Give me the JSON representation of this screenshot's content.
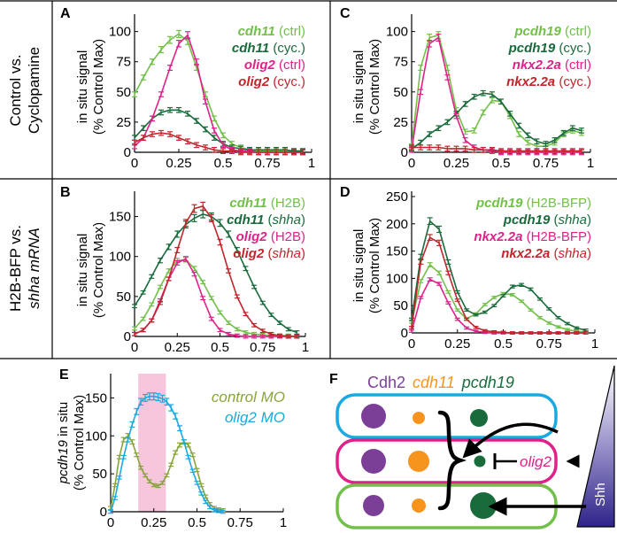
{
  "colors": {
    "light_green": "#72c04a",
    "dark_green": "#1a6b3c",
    "magenta": "#e0218a",
    "dark_red": "#c0262c",
    "blue": "#1ba9e1",
    "olive": "#8aa43c",
    "purple": "#7b3f98",
    "orange": "#f7941d",
    "shade": "#f6c6dd"
  },
  "row_labels": {
    "top": [
      "Control vs.",
      "Cyclopamine"
    ],
    "bottom": [
      "H2B-BFP vs.",
      "shha mRNA"
    ]
  },
  "panels": [
    {
      "letter": "A",
      "ylabel": [
        "in situ signal",
        "(% Control Max)"
      ],
      "yticks": [
        "0",
        "25",
        "50",
        "75",
        "100"
      ],
      "xticks": [
        "0",
        "0.25",
        "0.5",
        "0.75",
        "1"
      ],
      "legend": [
        {
          "gene": "cdh11",
          "cond": "(ctrl)",
          "italic_cond": false,
          "color": "light_green"
        },
        {
          "gene": "cdh11",
          "cond": "(cyc.)",
          "italic_cond": false,
          "color": "dark_green"
        },
        {
          "gene": "olig2",
          "cond": "(ctrl)",
          "italic_cond": false,
          "color": "magenta"
        },
        {
          "gene": "olig2",
          "cond": "(cyc.)",
          "italic_cond": false,
          "color": "dark_red"
        }
      ]
    },
    {
      "letter": "C",
      "ylabel": [
        "in situ signal",
        "(% Control Max)"
      ],
      "yticks": [
        "0",
        "25",
        "50",
        "75",
        "100"
      ],
      "xticks": [
        "0",
        "0.25",
        "0.5",
        "0.75",
        "1"
      ],
      "legend": [
        {
          "gene": "pcdh19",
          "cond": "(ctrl)",
          "italic_cond": false,
          "color": "light_green"
        },
        {
          "gene": "pcdh19",
          "cond": "(cyc.)",
          "italic_cond": false,
          "color": "dark_green"
        },
        {
          "gene": "nkx2.2a",
          "cond": "(ctrl)",
          "italic_cond": false,
          "color": "magenta"
        },
        {
          "gene": "nkx2.2a",
          "cond": "(cyc.)",
          "italic_cond": false,
          "color": "dark_red"
        }
      ]
    },
    {
      "letter": "B",
      "ylabel": [
        "in situ signal",
        "(% Control Max)"
      ],
      "yticks": [
        "0",
        "50",
        "100",
        "150"
      ],
      "xticks": [
        "0",
        "0.25",
        "0.5",
        "0.75",
        "1"
      ],
      "legend": [
        {
          "gene": "cdh11",
          "cond": "(H2B)",
          "italic_cond": false,
          "color": "light_green"
        },
        {
          "gene": "cdh11",
          "cond": "(shha)",
          "italic_cond": true,
          "color": "dark_green"
        },
        {
          "gene": "olig2",
          "cond": "(H2B)",
          "italic_cond": false,
          "color": "magenta"
        },
        {
          "gene": "olig2",
          "cond": "(shha)",
          "italic_cond": true,
          "color": "dark_red"
        }
      ]
    },
    {
      "letter": "D",
      "ylabel": [
        "in situ signal",
        "(% Control Max)"
      ],
      "yticks": [
        "0",
        "50",
        "100",
        "150",
        "200",
        "250"
      ],
      "xticks": [
        "0",
        "0.25",
        "0.5",
        "0.75",
        "1"
      ],
      "legend": [
        {
          "gene": "pcdh19",
          "cond": "(H2B-BFP)",
          "italic_cond": false,
          "color": "light_green"
        },
        {
          "gene": "pcdh19",
          "cond": "(shha)",
          "italic_cond": true,
          "color": "dark_green"
        },
        {
          "gene": "nkx2.2a",
          "cond": "(H2B-BFP)",
          "italic_cond": false,
          "color": "magenta"
        },
        {
          "gene": "nkx2.2a",
          "cond": "(shha)",
          "italic_cond": true,
          "color": "dark_red"
        }
      ]
    },
    {
      "letter": "E",
      "ylabel_gene": "pcdh19",
      "ylabel_rest": " in situ",
      "ylabel2": "(% Control Max)",
      "yticks": [
        "0",
        "50",
        "100",
        "150"
      ],
      "xticks": [
        "0",
        "0.25",
        "0.5",
        "0.75",
        "1"
      ],
      "legend": [
        {
          "label": "control MO",
          "color": "olive"
        },
        {
          "label": "olig2 MO",
          "color": "blue"
        }
      ]
    }
  ],
  "panel_f": {
    "letter": "F",
    "header": [
      {
        "text": "Cdh2",
        "italic": false,
        "color": "purple"
      },
      {
        "text": "cdh11",
        "italic": true,
        "color": "orange"
      },
      {
        "text": "pcdh19",
        "italic": true,
        "color": "dark_green"
      }
    ],
    "olig2_label": "olig2",
    "shh_label": "Shh"
  },
  "chart_data": [
    {
      "panel": "A",
      "type": "line",
      "ylim": [
        0,
        110
      ],
      "xlim": [
        0,
        1
      ],
      "x": [
        0,
        0.05,
        0.1,
        0.15,
        0.2,
        0.25,
        0.3,
        0.35,
        0.4,
        0.45,
        0.5,
        0.55,
        0.6,
        0.65,
        0.7,
        0.75,
        0.8,
        0.85,
        0.9,
        0.95
      ],
      "series": [
        {
          "color": "light_green",
          "values": [
            48,
            62,
            75,
            85,
            93,
            98,
            92,
            70,
            48,
            28,
            14,
            7,
            4,
            2,
            1,
            1,
            1,
            1,
            1,
            1
          ]
        },
        {
          "color": "dark_green",
          "values": [
            12,
            20,
            28,
            33,
            35,
            35,
            32,
            26,
            19,
            12,
            7,
            4,
            3,
            2,
            2,
            2,
            2,
            2,
            1,
            1
          ]
        },
        {
          "color": "magenta",
          "values": [
            5,
            12,
            28,
            48,
            70,
            90,
            97,
            75,
            42,
            18,
            6,
            2,
            1,
            1,
            0,
            0,
            0,
            0,
            0,
            0
          ]
        },
        {
          "color": "dark_red",
          "values": [
            8,
            12,
            15,
            16,
            15,
            12,
            9,
            6,
            4,
            2,
            1,
            1,
            0,
            0,
            0,
            0,
            0,
            0,
            0,
            0
          ]
        }
      ]
    },
    {
      "panel": "C",
      "type": "line",
      "ylim": [
        0,
        110
      ],
      "xlim": [
        0,
        1
      ],
      "x": [
        0,
        0.05,
        0.1,
        0.15,
        0.2,
        0.25,
        0.3,
        0.35,
        0.4,
        0.45,
        0.5,
        0.55,
        0.6,
        0.65,
        0.7,
        0.75,
        0.8,
        0.85,
        0.9,
        0.95
      ],
      "series": [
        {
          "color": "light_green",
          "values": [
            5,
            70,
            95,
            97,
            70,
            35,
            17,
            18,
            33,
            43,
            42,
            30,
            15,
            8,
            5,
            5,
            8,
            15,
            18,
            16
          ]
        },
        {
          "color": "dark_green",
          "values": [
            3,
            8,
            15,
            20,
            25,
            32,
            40,
            46,
            49,
            48,
            42,
            32,
            22,
            14,
            9,
            7,
            10,
            16,
            20,
            18
          ]
        },
        {
          "color": "magenta",
          "values": [
            2,
            50,
            90,
            95,
            62,
            30,
            10,
            4,
            2,
            1,
            0,
            0,
            0,
            0,
            0,
            0,
            0,
            0,
            0,
            0
          ]
        },
        {
          "color": "dark_red",
          "values": [
            4,
            4,
            4,
            4,
            3,
            3,
            3,
            2,
            2,
            2,
            1,
            1,
            1,
            1,
            1,
            1,
            1,
            1,
            1,
            1
          ]
        }
      ]
    },
    {
      "panel": "B",
      "type": "line",
      "ylim": [
        0,
        175
      ],
      "xlim": [
        0,
        1
      ],
      "x": [
        0,
        0.05,
        0.1,
        0.15,
        0.2,
        0.25,
        0.3,
        0.35,
        0.4,
        0.45,
        0.5,
        0.55,
        0.6,
        0.65,
        0.7,
        0.75,
        0.8,
        0.85,
        0.9,
        0.95
      ],
      "series": [
        {
          "color": "light_green",
          "values": [
            10,
            22,
            40,
            62,
            82,
            95,
            96,
            85,
            68,
            48,
            30,
            17,
            9,
            5,
            3,
            2,
            1,
            1,
            1,
            0
          ]
        },
        {
          "color": "dark_green",
          "values": [
            38,
            55,
            75,
            95,
            112,
            128,
            140,
            148,
            153,
            150,
            142,
            128,
            108,
            85,
            62,
            42,
            27,
            17,
            9,
            5
          ]
        },
        {
          "color": "magenta",
          "values": [
            3,
            8,
            20,
            45,
            72,
            92,
            97,
            78,
            48,
            22,
            8,
            3,
            1,
            0,
            0,
            0,
            0,
            0,
            0,
            0
          ]
        },
        {
          "color": "dark_red",
          "values": [
            3,
            8,
            20,
            42,
            72,
            108,
            142,
            160,
            163,
            148,
            118,
            82,
            50,
            28,
            14,
            7,
            3,
            1,
            0,
            0
          ]
        }
      ]
    },
    {
      "panel": "D",
      "type": "line",
      "ylim": [
        0,
        250
      ],
      "xlim": [
        0,
        1
      ],
      "x": [
        0,
        0.05,
        0.1,
        0.15,
        0.2,
        0.25,
        0.3,
        0.35,
        0.4,
        0.45,
        0.5,
        0.55,
        0.6,
        0.65,
        0.7,
        0.75,
        0.8,
        0.85,
        0.9,
        0.95
      ],
      "series": [
        {
          "color": "light_green",
          "values": [
            20,
            95,
            125,
            110,
            75,
            42,
            26,
            35,
            52,
            65,
            72,
            70,
            58,
            42,
            28,
            18,
            11,
            6,
            3,
            2
          ]
        },
        {
          "color": "dark_green",
          "values": [
            25,
            140,
            205,
            190,
            130,
            75,
            42,
            33,
            38,
            50,
            68,
            85,
            88,
            80,
            62,
            44,
            28,
            17,
            9,
            5
          ]
        },
        {
          "color": "magenta",
          "values": [
            3,
            65,
            98,
            90,
            55,
            25,
            9,
            3,
            1,
            0,
            0,
            0,
            0,
            0,
            0,
            0,
            0,
            0,
            0,
            0
          ]
        },
        {
          "color": "dark_red",
          "values": [
            10,
            130,
            175,
            165,
            110,
            60,
            25,
            10,
            4,
            2,
            1,
            0,
            0,
            0,
            0,
            0,
            0,
            0,
            0,
            0
          ]
        }
      ]
    },
    {
      "panel": "E",
      "type": "line",
      "ylim": [
        0,
        175
      ],
      "xlim": [
        0,
        1
      ],
      "shaded_x": [
        0.16,
        0.32
      ],
      "x": [
        0,
        0.025,
        0.05,
        0.075,
        0.1,
        0.125,
        0.15,
        0.175,
        0.2,
        0.225,
        0.25,
        0.275,
        0.3,
        0.325,
        0.35,
        0.375,
        0.4,
        0.425,
        0.45,
        0.475,
        0.5,
        0.525,
        0.55,
        0.575,
        0.6,
        0.625,
        0.65
      ],
      "series": [
        {
          "color": "olive",
          "values": [
            5,
            35,
            72,
            95,
            100,
            92,
            75,
            58,
            48,
            40,
            35,
            34,
            38,
            48,
            62,
            78,
            88,
            92,
            88,
            75,
            55,
            35,
            20,
            10,
            5,
            3,
            2
          ]
        },
        {
          "color": "blue",
          "values": [
            0,
            18,
            45,
            72,
            95,
            115,
            132,
            145,
            150,
            152,
            152,
            151,
            149,
            145,
            137,
            126,
            110,
            92,
            72,
            54,
            38,
            24,
            13,
            6,
            2,
            1,
            0
          ]
        }
      ]
    }
  ]
}
